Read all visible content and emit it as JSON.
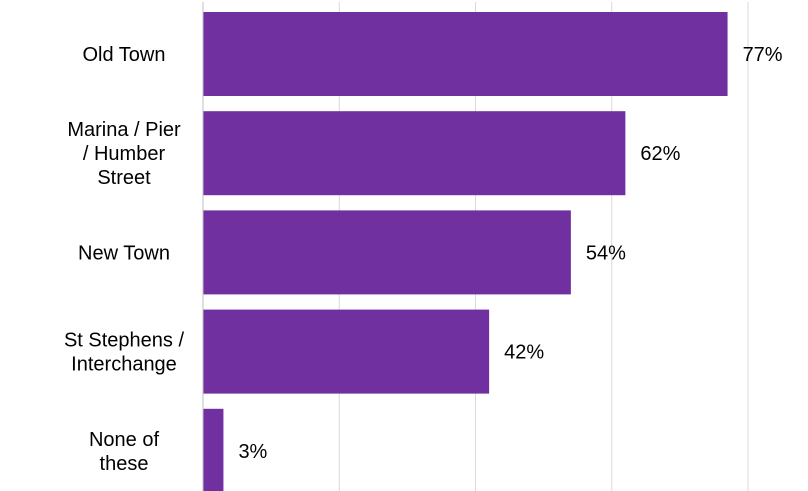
{
  "chart_data": {
    "type": "bar",
    "orientation": "horizontal",
    "categories": [
      [
        "Old Town"
      ],
      [
        "Marina / Pier",
        "/ Humber",
        "Street"
      ],
      [
        "New Town"
      ],
      [
        "St Stephens /",
        "Interchange"
      ],
      [
        "None of",
        "these"
      ]
    ],
    "values": [
      77,
      62,
      54,
      42,
      3
    ],
    "data_labels": [
      "77%",
      "62%",
      "54%",
      "42%",
      "3%"
    ],
    "xlim": [
      0,
      80
    ],
    "grid": true,
    "legend": "none",
    "colors": {
      "bar": "#7030a0",
      "grid": "#d9d9d9",
      "axis": "#bfbfbf"
    }
  }
}
